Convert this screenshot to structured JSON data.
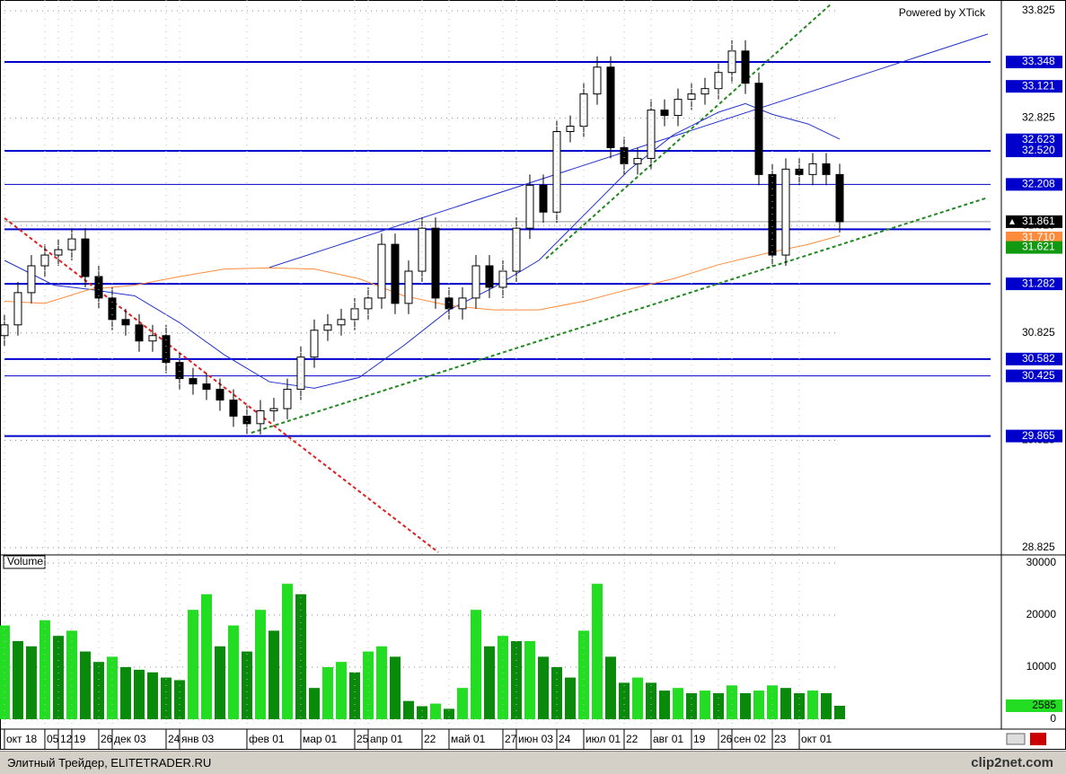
{
  "chart_data": [
    {
      "type": "candlestick",
      "annotation": "Powered by XTick",
      "x": [
        0,
        1,
        2,
        3,
        4,
        5,
        6,
        7,
        8,
        9,
        10,
        11,
        12,
        13,
        14,
        15,
        16,
        17,
        18,
        19,
        20,
        21,
        22,
        23,
        24,
        25,
        26,
        27,
        28,
        29,
        30,
        31,
        32,
        33,
        34,
        35,
        36,
        37,
        38,
        39,
        40,
        41,
        42,
        43,
        44,
        45,
        46,
        47,
        48,
        49,
        50,
        51,
        52,
        53,
        54,
        55,
        56,
        57,
        58,
        59,
        60,
        61,
        62
      ],
      "open": [
        30.8,
        30.9,
        31.2,
        31.45,
        31.55,
        31.6,
        31.7,
        31.35,
        31.15,
        30.95,
        30.9,
        30.75,
        30.8,
        30.55,
        30.4,
        30.35,
        30.3,
        30.2,
        30.05,
        29.98,
        30.1,
        30.12,
        30.3,
        30.6,
        30.85,
        30.9,
        30.95,
        31.05,
        31.15,
        31.65,
        31.1,
        31.4,
        31.8,
        31.15,
        31.05,
        31.15,
        31.45,
        31.25,
        31.4,
        31.8,
        32.2,
        31.95,
        32.7,
        32.75,
        33.05,
        33.3,
        32.55,
        32.4,
        32.45,
        32.9,
        32.85,
        33.0,
        33.05,
        33.1,
        33.25,
        33.45,
        33.15,
        32.3,
        31.55,
        32.35,
        32.3,
        32.4,
        32.3
      ],
      "high": [
        31.0,
        31.3,
        31.55,
        31.65,
        31.7,
        31.8,
        31.8,
        31.45,
        31.25,
        31.05,
        31.0,
        30.9,
        30.9,
        30.65,
        30.5,
        30.45,
        30.4,
        30.3,
        30.15,
        30.2,
        30.22,
        30.4,
        30.7,
        30.95,
        31.0,
        31.05,
        31.15,
        31.25,
        31.75,
        31.75,
        31.5,
        31.9,
        31.9,
        31.25,
        31.25,
        31.55,
        31.55,
        31.5,
        31.9,
        32.3,
        32.3,
        32.8,
        32.85,
        33.15,
        33.4,
        33.4,
        32.65,
        32.55,
        33.0,
        33.0,
        33.1,
        33.15,
        33.2,
        33.35,
        33.55,
        33.55,
        33.25,
        32.4,
        32.45,
        32.45,
        32.5,
        32.5,
        32.4
      ],
      "low": [
        30.7,
        30.8,
        31.1,
        31.35,
        31.45,
        31.5,
        31.25,
        31.05,
        30.85,
        30.8,
        30.65,
        30.65,
        30.45,
        30.3,
        30.25,
        30.2,
        30.1,
        29.95,
        29.88,
        29.88,
        30.0,
        30.02,
        30.2,
        30.5,
        30.75,
        30.8,
        30.85,
        30.95,
        31.05,
        31.0,
        31.0,
        31.3,
        31.05,
        30.95,
        30.95,
        31.05,
        31.15,
        31.15,
        31.3,
        31.7,
        31.85,
        31.85,
        32.6,
        32.65,
        32.95,
        32.45,
        32.3,
        32.3,
        32.35,
        32.75,
        32.75,
        32.9,
        32.95,
        33.0,
        33.15,
        33.05,
        32.2,
        31.45,
        31.45,
        32.2,
        32.2,
        32.2,
        31.76
      ],
      "close": [
        30.9,
        31.2,
        31.45,
        31.55,
        31.6,
        31.7,
        31.35,
        31.15,
        30.95,
        30.9,
        30.75,
        30.8,
        30.55,
        30.4,
        30.35,
        30.3,
        30.2,
        30.05,
        29.98,
        30.1,
        30.12,
        30.3,
        30.6,
        30.85,
        30.9,
        30.95,
        31.05,
        31.15,
        31.65,
        31.1,
        31.4,
        31.8,
        31.15,
        31.05,
        31.15,
        31.45,
        31.25,
        31.4,
        31.8,
        32.2,
        31.95,
        32.7,
        32.75,
        33.05,
        33.3,
        32.55,
        32.4,
        32.45,
        32.9,
        32.85,
        33.0,
        33.05,
        33.1,
        33.25,
        33.45,
        33.15,
        32.3,
        31.55,
        32.35,
        32.3,
        32.4,
        32.3,
        31.86
      ],
      "up_color": "#ffffff",
      "down_color": "#000000",
      "xlim": [
        -0.33,
        74
      ],
      "ylim": [
        28.758,
        33.925
      ],
      "yticks": [
        33.825,
        32.825,
        31.825,
        30.825,
        29.825,
        28.825
      ],
      "levels": [
        {
          "price": 33.348,
          "line": "thick",
          "color": "#0000cc"
        },
        {
          "price": 33.121,
          "line": "none",
          "color": "#0000cc"
        },
        {
          "price": 32.623,
          "line": "none",
          "color": "#0000cc"
        },
        {
          "price": 32.52,
          "label": "32.520",
          "line": "thick",
          "color": "#0000cc"
        },
        {
          "price": 32.208,
          "line": "thin",
          "color": "#0000cc"
        },
        {
          "price": 31.79,
          "line": "thick",
          "color": "#0000cc",
          "labeled": false
        },
        {
          "price": 31.861,
          "line": "thin",
          "color": "#000000",
          "line_color": "#999999"
        },
        {
          "price": 31.71,
          "label": "31.710",
          "line": "none",
          "color": "#ff8c3c"
        },
        {
          "price": 31.621,
          "line": "none",
          "color": "#119911"
        },
        {
          "price": 31.282,
          "line": "thick",
          "color": "#0000cc"
        },
        {
          "price": 30.582,
          "line": "thick",
          "color": "#0000cc"
        },
        {
          "price": 30.425,
          "line": "thin",
          "color": "#0000cc"
        },
        {
          "price": 29.865,
          "line": "thick",
          "color": "#0000cc"
        }
      ],
      "overlays": [
        {
          "color": "#2233cc",
          "dash": false,
          "x": [
            19.67,
            73
          ],
          "values": [
            31.434,
            33.608
          ]
        },
        {
          "color": "#dd2222",
          "dash": true,
          "x": [
            0,
            32.2
          ],
          "values": [
            31.894,
            28.783
          ]
        },
        {
          "color": "#228822",
          "dash": true,
          "x": [
            18.33,
            73
          ],
          "values": [
            29.895,
            32.086
          ]
        },
        {
          "color": "#228822",
          "dash": true,
          "x": [
            40.2,
            61.33
          ],
          "values": [
            31.517,
            33.884
          ]
        },
        {
          "color": "#2233cc",
          "dash": false,
          "x": [
            0,
            3.67,
            6.33,
            9.67,
            13,
            16.33,
            19.67,
            23,
            26.33,
            29.67,
            33,
            36.33,
            39.67,
            43,
            46.33,
            49.67,
            53,
            55,
            57,
            59.67,
            62
          ],
          "values": [
            31.5,
            31.27,
            31.23,
            31.17,
            30.92,
            30.62,
            30.37,
            30.31,
            30.41,
            30.71,
            31.04,
            31.25,
            31.5,
            31.92,
            32.34,
            32.67,
            32.88,
            32.96,
            32.86,
            32.77,
            32.63
          ]
        },
        {
          "color": "#ff8c3c",
          "dash": false,
          "x": [
            0,
            3,
            6.33,
            9.67,
            13,
            16.33,
            19.67,
            23,
            26.33,
            29.67,
            33,
            36.33,
            39.67,
            43,
            46.33,
            49.67,
            53,
            56.33,
            59.67,
            62
          ],
          "values": [
            31.12,
            31.1,
            31.23,
            31.27,
            31.35,
            31.42,
            31.43,
            31.42,
            31.33,
            31.17,
            31.08,
            31.04,
            31.04,
            31.12,
            31.23,
            31.33,
            31.46,
            31.56,
            31.65,
            31.73
          ]
        }
      ],
      "grid": true
    },
    {
      "type": "bar",
      "title": "Volume",
      "x": [
        0,
        1,
        2,
        3,
        4,
        5,
        6,
        7,
        8,
        9,
        10,
        11,
        12,
        13,
        14,
        15,
        16,
        17,
        18,
        19,
        20,
        21,
        22,
        23,
        24,
        25,
        26,
        27,
        28,
        29,
        30,
        31,
        32,
        33,
        34,
        35,
        36,
        37,
        38,
        39,
        40,
        41,
        42,
        43,
        44,
        45,
        46,
        47,
        48,
        49,
        50,
        51,
        52,
        53,
        54,
        55,
        56,
        57,
        58,
        59,
        60,
        61,
        62
      ],
      "values": [
        18000,
        15000,
        14000,
        19000,
        16000,
        17000,
        13000,
        11000,
        12000,
        10000,
        9500,
        9000,
        8000,
        7500,
        21000,
        24000,
        14000,
        18000,
        13000,
        21000,
        17000,
        26000,
        24000,
        6000,
        10000,
        11000,
        9000,
        13000,
        14000,
        12000,
        3500,
        2500,
        3000,
        2000,
        6000,
        21000,
        14000,
        16000,
        15000,
        15000,
        12000,
        10000,
        8000,
        17000,
        26000,
        12000,
        7000,
        8000,
        7000,
        5500,
        6000,
        5000,
        5500,
        5000,
        6500,
        5000,
        5500,
        6500,
        6000,
        5000,
        5500,
        5000,
        2585
      ],
      "colors": [
        "#22dd22",
        "#0a8a0a"
      ],
      "last_label_color": "#22dd22",
      "xlim": [
        -0.33,
        74
      ],
      "ylim": [
        -1900,
        31200
      ],
      "yticks": [
        30000,
        20000,
        10000,
        0
      ],
      "xticks": [
        {
          "value": 0,
          "label": "окт 18"
        },
        {
          "value": 3,
          "label": "05"
        },
        {
          "value": 4,
          "label": "12"
        },
        {
          "value": 5,
          "label": "19"
        },
        {
          "value": 7,
          "label": "26"
        },
        {
          "value": 8,
          "label": "дек 03"
        },
        {
          "value": 12,
          "label": "24"
        },
        {
          "value": 13,
          "label": "янв 03"
        },
        {
          "value": 18,
          "label": "фев 01"
        },
        {
          "value": 22,
          "label": "мар 01"
        },
        {
          "value": 26,
          "label": "25"
        },
        {
          "value": 27,
          "label": "апр 01"
        },
        {
          "value": 31,
          "label": "22"
        },
        {
          "value": 33,
          "label": "май 01"
        },
        {
          "value": 37,
          "label": "27"
        },
        {
          "value": 38,
          "label": "июн 03"
        },
        {
          "value": 41,
          "label": "24"
        },
        {
          "value": 43,
          "label": "июл 01"
        },
        {
          "value": 46,
          "label": "22"
        },
        {
          "value": 48,
          "label": "авг 01"
        },
        {
          "value": 51,
          "label": "19"
        },
        {
          "value": 53,
          "label": "26"
        },
        {
          "value": 54,
          "label": "сен 02"
        },
        {
          "value": 57,
          "label": "23"
        },
        {
          "value": 59,
          "label": "окт 01"
        }
      ],
      "grid": true
    }
  ],
  "footer": {
    "source": "Элитный Трейдер, ELITETRADER.RU",
    "watermark": "clip2net.com"
  }
}
